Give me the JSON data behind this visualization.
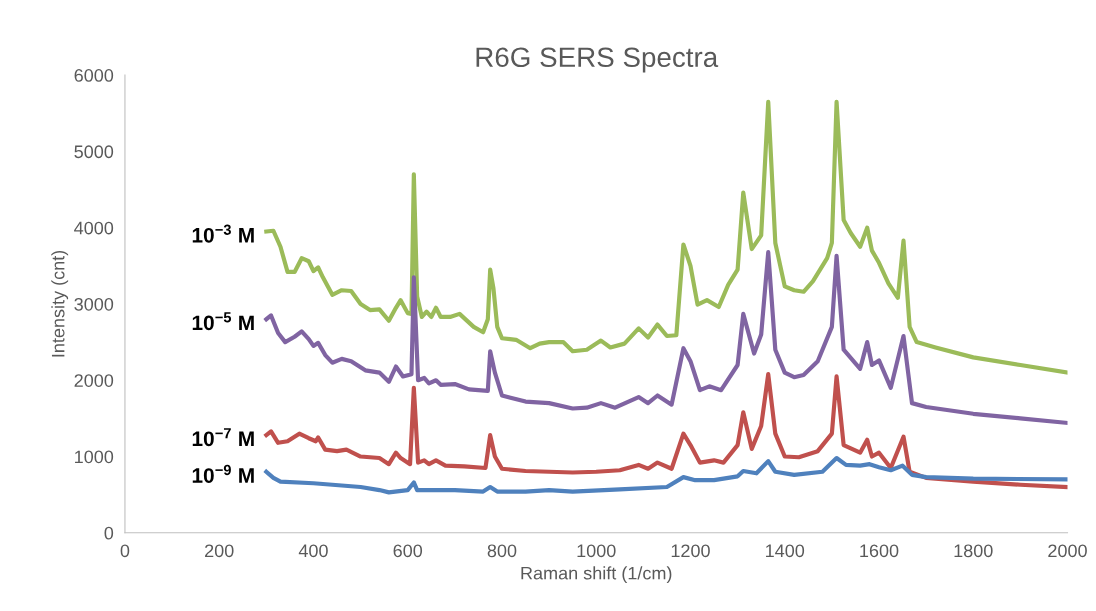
{
  "chart_data": {
    "type": "line",
    "title": "R6G SERS Spectra",
    "xlabel": "Raman shift (1/cm)",
    "ylabel": "Intensity (cnt)",
    "xlim": [
      0,
      2000
    ],
    "xticks": [
      0,
      200,
      400,
      600,
      800,
      1000,
      1200,
      1400,
      1600,
      1800,
      2000
    ],
    "ylim": [
      0,
      6000
    ],
    "yticks": [
      0,
      1000,
      2000,
      3000,
      4000,
      5000,
      6000
    ],
    "grid": false,
    "legend": false,
    "marker": "none",
    "line_style": "solid",
    "series": [
      {
        "name": "10$^{−3}$ M",
        "color": "#9bbb59",
        "x": [
          300,
          315,
          330,
          345,
          360,
          375,
          390,
          400,
          410,
          420,
          440,
          460,
          480,
          500,
          520,
          540,
          560,
          575,
          585,
          600,
          608,
          613,
          620,
          630,
          640,
          650,
          660,
          670,
          690,
          710,
          740,
          760,
          770,
          775,
          782,
          790,
          800,
          830,
          860,
          880,
          900,
          930,
          950,
          980,
          1010,
          1030,
          1060,
          1090,
          1110,
          1130,
          1150,
          1170,
          1185,
          1200,
          1215,
          1235,
          1260,
          1280,
          1300,
          1312,
          1330,
          1350,
          1365,
          1380,
          1400,
          1420,
          1440,
          1460,
          1490,
          1500,
          1510,
          1525,
          1540,
          1560,
          1575,
          1585,
          1600,
          1620,
          1640,
          1652,
          1665,
          1680,
          1720,
          1800,
          1900,
          2000
        ],
        "values": [
          3950,
          3960,
          3750,
          3420,
          3420,
          3600,
          3560,
          3430,
          3480,
          3350,
          3120,
          3180,
          3170,
          3000,
          2920,
          2930,
          2780,
          2950,
          3050,
          2880,
          2870,
          4700,
          3100,
          2830,
          2900,
          2830,
          2950,
          2830,
          2830,
          2870,
          2700,
          2630,
          2800,
          3450,
          3200,
          2700,
          2550,
          2530,
          2420,
          2480,
          2500,
          2500,
          2380,
          2400,
          2520,
          2430,
          2480,
          2680,
          2560,
          2730,
          2580,
          2590,
          3780,
          3500,
          2990,
          3050,
          2960,
          3250,
          3450,
          4460,
          3720,
          3900,
          5650,
          3800,
          3230,
          3180,
          3160,
          3300,
          3600,
          3800,
          5650,
          4100,
          3930,
          3750,
          4000,
          3700,
          3540,
          3270,
          3080,
          3830,
          2700,
          2500,
          2430,
          2300,
          2200,
          2100
        ]
      },
      {
        "name": "10$^{−5}$ M",
        "color": "#8064a2",
        "x": [
          300,
          310,
          325,
          340,
          360,
          375,
          390,
          400,
          410,
          425,
          440,
          460,
          480,
          510,
          540,
          560,
          575,
          590,
          608,
          613,
          622,
          635,
          645,
          660,
          670,
          700,
          730,
          770,
          775,
          785,
          800,
          850,
          900,
          950,
          980,
          1010,
          1040,
          1090,
          1110,
          1130,
          1160,
          1185,
          1200,
          1220,
          1240,
          1265,
          1300,
          1312,
          1335,
          1350,
          1365,
          1380,
          1400,
          1420,
          1440,
          1470,
          1500,
          1510,
          1525,
          1560,
          1575,
          1585,
          1600,
          1625,
          1652,
          1670,
          1700,
          1800,
          1900,
          2000
        ],
        "values": [
          2800,
          2850,
          2620,
          2500,
          2570,
          2640,
          2540,
          2450,
          2490,
          2330,
          2230,
          2280,
          2250,
          2130,
          2100,
          1980,
          2180,
          2050,
          2080,
          3350,
          2000,
          2030,
          1960,
          2000,
          1940,
          1950,
          1880,
          1860,
          2380,
          2100,
          1800,
          1720,
          1700,
          1630,
          1640,
          1700,
          1640,
          1780,
          1700,
          1800,
          1680,
          2420,
          2250,
          1870,
          1920,
          1870,
          2200,
          2870,
          2350,
          2600,
          3680,
          2400,
          2100,
          2040,
          2070,
          2250,
          2700,
          3630,
          2400,
          2150,
          2500,
          2200,
          2260,
          1900,
          2580,
          1700,
          1650,
          1560,
          1500,
          1440
        ]
      },
      {
        "name": "10$^{−7}$ M",
        "color": "#c0504d",
        "x": [
          300,
          310,
          325,
          345,
          370,
          390,
          405,
          410,
          425,
          450,
          470,
          500,
          540,
          560,
          575,
          585,
          605,
          613,
          622,
          635,
          645,
          660,
          680,
          720,
          765,
          775,
          785,
          800,
          850,
          900,
          950,
          1000,
          1050,
          1090,
          1110,
          1130,
          1160,
          1185,
          1200,
          1220,
          1250,
          1270,
          1300,
          1312,
          1330,
          1350,
          1365,
          1380,
          1400,
          1430,
          1470,
          1500,
          1510,
          1525,
          1560,
          1575,
          1585,
          1600,
          1625,
          1652,
          1665,
          1700,
          1800,
          1900,
          2000
        ],
        "values": [
          1280,
          1330,
          1180,
          1200,
          1300,
          1240,
          1200,
          1250,
          1090,
          1070,
          1090,
          1000,
          980,
          900,
          1050,
          980,
          900,
          1900,
          920,
          950,
          900,
          950,
          880,
          870,
          850,
          1280,
          1000,
          840,
          810,
          800,
          790,
          800,
          820,
          890,
          840,
          920,
          840,
          1300,
          1150,
          920,
          950,
          920,
          1150,
          1580,
          1100,
          1400,
          2080,
          1300,
          1000,
          990,
          1070,
          1300,
          2050,
          1150,
          1050,
          1220,
          1000,
          1050,
          850,
          1260,
          800,
          720,
          670,
          630,
          600
        ]
      },
      {
        "name": "10$^{−9}$ M",
        "color": "#4f81bd",
        "x": [
          300,
          315,
          330,
          400,
          500,
          540,
          560,
          600,
          613,
          620,
          700,
          760,
          775,
          790,
          850,
          900,
          950,
          1050,
          1150,
          1185,
          1210,
          1250,
          1300,
          1312,
          1340,
          1365,
          1380,
          1420,
          1480,
          1510,
          1530,
          1560,
          1580,
          1600,
          1625,
          1650,
          1670,
          1700,
          1800,
          2000
        ],
        "values": [
          800,
          720,
          670,
          650,
          600,
          560,
          530,
          560,
          660,
          560,
          560,
          540,
          600,
          540,
          540,
          560,
          540,
          570,
          600,
          730,
          690,
          690,
          740,
          810,
          780,
          940,
          800,
          760,
          800,
          980,
          890,
          880,
          900,
          860,
          820,
          880,
          760,
          730,
          710,
          700
        ]
      }
    ]
  }
}
